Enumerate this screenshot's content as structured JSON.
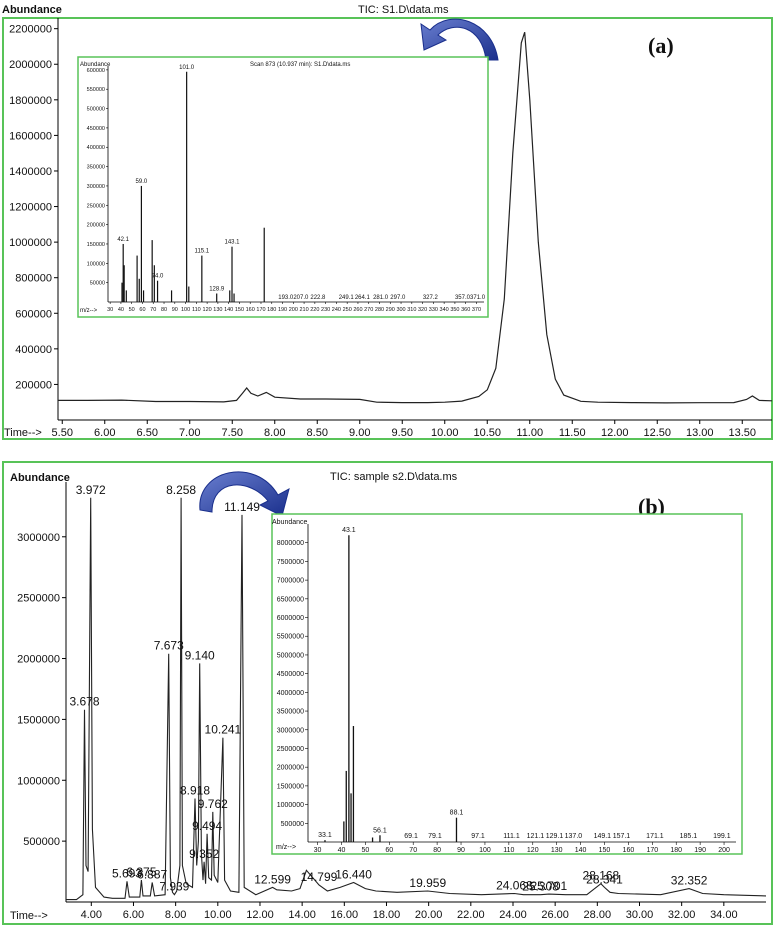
{
  "panels": [
    {
      "label": "(a)",
      "title": "TIC: S1.D\\data.ms",
      "ylabel": "Abundance",
      "xlabel": "Time-->",
      "y_ticks": [
        200000,
        400000,
        600000,
        800000,
        1000000,
        1200000,
        1400000,
        1600000,
        1800000,
        2000000,
        2200000
      ],
      "x_ticks": [
        "5.50",
        "6.00",
        "6.50",
        "7.00",
        "7.50",
        "8.00",
        "8.50",
        "9.00",
        "9.50",
        "10.00",
        "10.50",
        "11.00",
        "11.50",
        "12.00",
        "12.50",
        "13.00",
        "13.50"
      ],
      "inset": {
        "title": "Scan 873 (10.937 min): S1.D\\data.ms",
        "ylabel": "Abundance",
        "xlabel": "m/z-->",
        "y_ticks": [
          50000,
          100000,
          150000,
          200000,
          250000,
          300000,
          350000,
          400000,
          450000,
          500000,
          550000,
          600000
        ],
        "x_ticks": [
          30,
          40,
          50,
          60,
          70,
          80,
          90,
          100,
          110,
          120,
          130,
          140,
          150,
          160,
          170,
          180,
          190,
          200,
          210,
          220,
          230,
          240,
          250,
          260,
          270,
          280,
          290,
          300,
          310,
          320,
          330,
          340,
          350,
          360,
          370
        ],
        "peak_labels": [
          "42.1",
          "59.0",
          "74.0",
          "101.0",
          "115.1",
          "128.9",
          "143.1",
          "193.0",
          "207.0",
          "222.8",
          "249.1",
          "264.1",
          "281.0",
          "297.0",
          "327.2",
          "357.0",
          "371.0"
        ]
      }
    },
    {
      "label": "(b)",
      "title": "TIC: sample s2.D\\data.ms",
      "ylabel": "Abundance",
      "xlabel": "Time-->",
      "y_ticks": [
        500000,
        1000000,
        1500000,
        2000000,
        2500000,
        3000000
      ],
      "x_ticks": [
        "4.00",
        "6.00",
        "8.00",
        "10.00",
        "12.00",
        "14.00",
        "16.00",
        "18.00",
        "20.00",
        "22.00",
        "24.00",
        "26.00",
        "28.00",
        "30.00",
        "32.00",
        "34.00"
      ],
      "peak_labels": [
        "3.972",
        "3.678",
        "8.258",
        "7.673",
        "9.140",
        "11.149",
        "10.241",
        "8.918",
        "9.762",
        "9.352",
        "9.494",
        "5.693",
        "6.375",
        "6.887",
        "7.939",
        "12.599",
        "14.799",
        "16.440",
        "19.959",
        "25.701",
        "24.068",
        "25.308",
        "28.341",
        "28.168",
        "32.352"
      ],
      "inset": {
        "ylabel": "Abundance",
        "xlabel": "m/z-->",
        "y_ticks": [
          500000,
          1000000,
          1500000,
          2000000,
          2500000,
          3000000,
          3500000,
          4000000,
          4500000,
          5000000,
          5500000,
          6000000,
          6500000,
          7000000,
          7500000,
          8000000
        ],
        "x_ticks": [
          30,
          40,
          50,
          60,
          70,
          80,
          90,
          100,
          110,
          120,
          130,
          140,
          150,
          160,
          170,
          180,
          190,
          200
        ],
        "peak_labels": [
          "33.1",
          "43.1",
          "56.1",
          "69.1",
          "79.1",
          "88.1",
          "97.1",
          "111.1",
          "121.1",
          "129.1",
          "137.0",
          "149.1",
          "157.1",
          "171.1",
          "185.1",
          "199.1"
        ]
      }
    }
  ],
  "chart_data": [
    {
      "type": "line",
      "title": "TIC: S1.D\\data.ms",
      "xlabel": "Time-->",
      "ylabel": "Abundance",
      "xlim": [
        5.45,
        13.85
      ],
      "ylim": [
        0,
        2260000
      ],
      "series": [
        {
          "x": [
            5.45,
            5.8,
            6.2,
            6.6,
            7.0,
            7.4,
            7.55,
            7.62,
            7.67,
            7.72,
            7.8,
            7.9,
            8.0,
            8.3,
            8.6,
            9.0,
            9.2,
            9.5,
            9.8,
            10.0,
            10.2,
            10.4,
            10.5,
            10.6,
            10.7,
            10.8,
            10.9,
            10.94,
            11.0,
            11.1,
            11.2,
            11.3,
            11.4,
            11.6,
            11.8,
            12.2,
            12.6,
            13.0,
            13.4,
            13.55,
            13.62,
            13.7,
            13.85
          ],
          "y": [
            110000,
            110000,
            112000,
            104000,
            104000,
            102000,
            110000,
            150000,
            180000,
            150000,
            135000,
            155000,
            128000,
            118000,
            118000,
            116000,
            100000,
            98000,
            98000,
            100000,
            106000,
            132000,
            170000,
            290000,
            680000,
            1500000,
            2120000,
            2180000,
            1800000,
            1000000,
            480000,
            230000,
            140000,
            105000,
            100000,
            98000,
            96000,
            97000,
            98000,
            115000,
            135000,
            110000,
            108000
          ]
        }
      ]
    },
    {
      "type": "bar",
      "title": "Scan 873 (10.937 min): S1.D\\data.ms",
      "xlabel": "m/z-->",
      "ylabel": "Abundance",
      "xlim": [
        28,
        377
      ],
      "ylim": [
        0,
        610000
      ],
      "x": [
        41,
        42.1,
        43,
        45,
        55,
        57,
        59.0,
        61,
        69,
        71,
        74.0,
        87,
        101.0,
        103,
        115.1,
        128.9,
        141,
        143.1,
        145,
        173
      ],
      "values": [
        50000,
        150000,
        95000,
        30000,
        120000,
        60000,
        300000,
        30000,
        160000,
        95000,
        55000,
        30000,
        595000,
        40000,
        120000,
        22000,
        30000,
        143000,
        22000,
        192000
      ]
    },
    {
      "type": "line",
      "title": "TIC: sample s2.D\\data.ms",
      "xlabel": "Time-->",
      "ylabel": "Abundance",
      "xlim": [
        2.8,
        36.0
      ],
      "ylim": [
        0,
        3450000
      ],
      "series": [
        {
          "x": [
            2.8,
            3.3,
            3.6,
            3.678,
            3.75,
            3.85,
            3.972,
            4.05,
            4.2,
            4.6,
            5.0,
            5.6,
            5.693,
            5.8,
            6.3,
            6.375,
            6.45,
            6.8,
            6.887,
            7.0,
            7.5,
            7.673,
            7.75,
            7.85,
            7.939,
            8.05,
            8.2,
            8.258,
            8.32,
            8.5,
            8.8,
            8.918,
            9.0,
            9.08,
            9.14,
            9.22,
            9.3,
            9.352,
            9.42,
            9.494,
            9.57,
            9.7,
            9.762,
            9.83,
            10.0,
            10.241,
            10.32,
            10.6,
            11.0,
            11.149,
            11.25,
            11.8,
            12.599,
            12.8,
            13.5,
            13.9,
            14.2,
            14.799,
            15.2,
            15.8,
            16.44,
            17.0,
            17.5,
            18.5,
            19.959,
            21.0,
            22.5,
            24.068,
            24.5,
            25.308,
            25.701,
            26.5,
            27.5,
            28.168,
            28.341,
            28.6,
            29.0,
            30.0,
            31.0,
            32.352,
            33.0,
            34.0,
            35.0,
            36.0
          ],
          "y": [
            20000,
            20000,
            60000,
            1580000,
            300000,
            250000,
            3320000,
            600000,
            120000,
            40000,
            30000,
            30000,
            170000,
            40000,
            40000,
            180000,
            50000,
            50000,
            160000,
            50000,
            60000,
            2040000,
            200000,
            80000,
            60000,
            90000,
            300000,
            3320000,
            300000,
            150000,
            120000,
            850000,
            300000,
            500000,
            1960000,
            400000,
            180000,
            330000,
            150000,
            560000,
            200000,
            180000,
            740000,
            220000,
            160000,
            1350000,
            180000,
            90000,
            80000,
            3180000,
            120000,
            60000,
            120000,
            100000,
            90000,
            110000,
            260000,
            140000,
            90000,
            120000,
            160000,
            110000,
            90000,
            80000,
            90000,
            70000,
            60000,
            70000,
            60000,
            60000,
            65000,
            60000,
            60000,
            150000,
            120000,
            80000,
            70000,
            65000,
            60000,
            110000,
            70000,
            60000,
            55000,
            50000
          ]
        }
      ]
    },
    {
      "type": "bar",
      "title": "",
      "xlabel": "m/z-->",
      "ylabel": "Abundance",
      "xlim": [
        26,
        205
      ],
      "ylim": [
        0,
        8500000
      ],
      "x": [
        33.1,
        41,
        42,
        43.1,
        44,
        45,
        53,
        56.1,
        88.1
      ],
      "values": [
        50000,
        550000,
        1900000,
        8200000,
        1300000,
        3100000,
        120000,
        180000,
        650000
      ]
    }
  ]
}
